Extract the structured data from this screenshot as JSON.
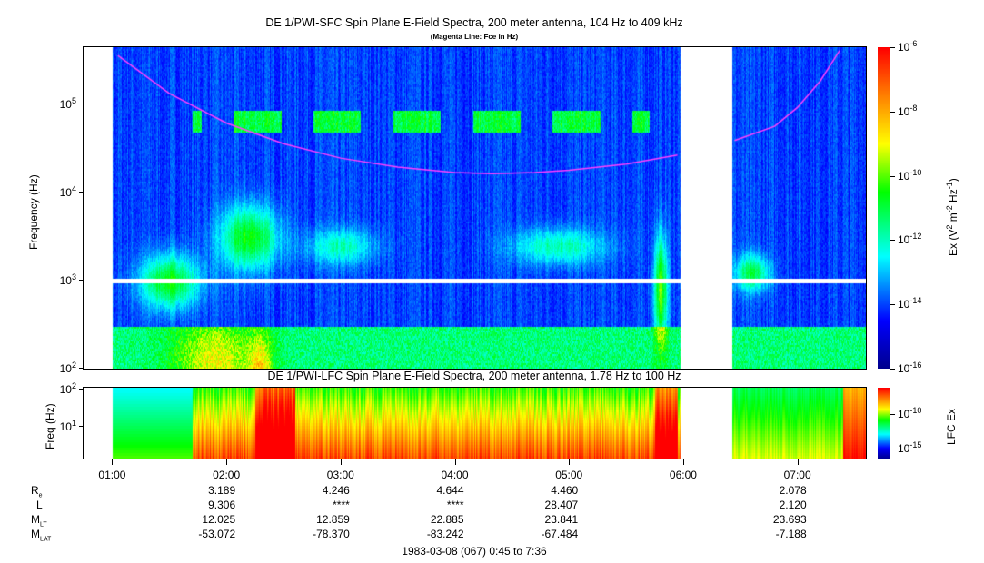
{
  "chart_data": [
    {
      "type": "heatmap",
      "title": "DE 1/PWI-SFC  Spin Plane E-Field Spectra, 200 meter antenna, 104 Hz to 409 kHz",
      "subtitle": "(Magenta Line: Fce in Hz)",
      "ylabel": "Frequency (Hz)",
      "yscale": "log",
      "ylim": [
        100,
        409000
      ],
      "yticks": [
        {
          "base": "10",
          "exp": "2"
        },
        {
          "base": "10",
          "exp": "3"
        },
        {
          "base": "10",
          "exp": "4"
        },
        {
          "base": "10",
          "exp": "5"
        }
      ],
      "colorbar": {
        "label": "Ex (V",
        "label_mid": "2",
        "label_m": " m",
        "label_mexp": "-2",
        "label_hz": " Hz",
        "label_hzexp": "-1",
        "label_end": ")",
        "range": [
          1e-16,
          1e-06
        ],
        "ticks": [
          {
            "base": "10",
            "exp": "-6"
          },
          {
            "base": "10",
            "exp": "-8"
          },
          {
            "base": "10",
            "exp": "-10"
          },
          {
            "base": "10",
            "exp": "-12"
          },
          {
            "base": "10",
            "exp": "-14"
          },
          {
            "base": "10",
            "exp": "-16"
          }
        ]
      },
      "data_gaps_hours": [
        [
          0.75,
          1.0
        ],
        [
          5.97,
          6.43
        ]
      ],
      "fce_line": {
        "hours": [
          1.05,
          1.5,
          2,
          2.5,
          3,
          3.5,
          4,
          4.33,
          4.7,
          5,
          5.5,
          5.95,
          6.45,
          6.8,
          7.0,
          7.2,
          7.37
        ],
        "hz": [
          350000,
          130000,
          60000,
          35000,
          24000,
          19000,
          16500,
          16000,
          16500,
          17500,
          20500,
          26000,
          38000,
          55000,
          90000,
          180000,
          400000
        ]
      }
    },
    {
      "type": "heatmap",
      "title": "DE 1/PWI-LFC  Spin Plane E-Field Spectra, 200 meter antenna, 1.78 Hz to 100 Hz",
      "ylabel": "Freq (Hz)",
      "yscale": "log",
      "ylim": [
        1.78,
        100
      ],
      "yticks": [
        {
          "base": "10",
          "exp": "1"
        },
        {
          "base": "10",
          "exp": "2"
        }
      ],
      "colorbar": {
        "label": "LFC Ex",
        "ticks": [
          {
            "base": "10",
            "exp": "-10"
          },
          {
            "base": "10",
            "exp": "-15"
          }
        ]
      }
    }
  ],
  "xaxis": {
    "ticks": [
      "01:00",
      "02:00",
      "03:00",
      "04:00",
      "05:00",
      "06:00",
      "07:00"
    ],
    "range_hours": [
      0.75,
      7.6
    ],
    "label": "1983-03-08 (067) 0:45 to 7:36"
  },
  "ephemeris": {
    "rows": [
      {
        "name": "R",
        "sub": "e",
        "values": [
          "",
          "3.189",
          "4.246",
          "4.644",
          "4.460",
          "",
          "2.078"
        ]
      },
      {
        "name": "L",
        "sub": "",
        "values": [
          "",
          "9.306",
          "****",
          "****",
          "28.407",
          "",
          "2.120"
        ]
      },
      {
        "name": "M",
        "sub": "LT",
        "values": [
          "",
          "12.025",
          "12.859",
          "22.885",
          "23.841",
          "",
          "23.693"
        ]
      },
      {
        "name": "M",
        "sub": "LAT",
        "values": [
          "",
          "-53.072",
          "-78.370",
          "-83.242",
          "-67.484",
          "",
          "-7.188"
        ]
      }
    ]
  },
  "colors": {
    "fce": "#ff40ff"
  }
}
